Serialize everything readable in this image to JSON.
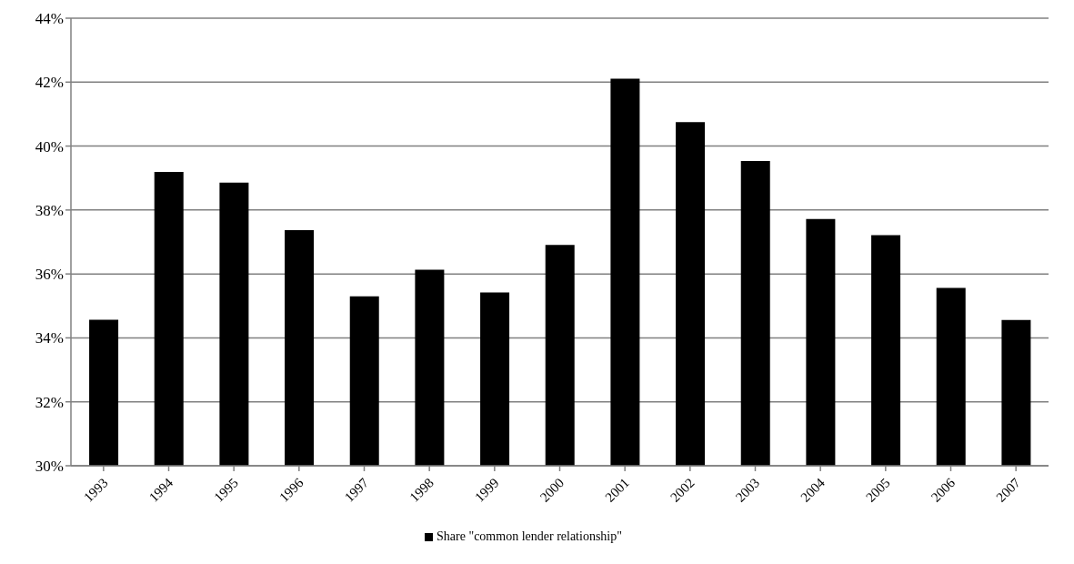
{
  "chart_data": {
    "type": "bar",
    "categories": [
      "1993",
      "1994",
      "1995",
      "1996",
      "1997",
      "1998",
      "1999",
      "2000",
      "2001",
      "2002",
      "2003",
      "2004",
      "2005",
      "2006",
      "2007"
    ],
    "series": [
      {
        "name": "Share \"common lender relationship\"",
        "color": "#000000",
        "values": [
          34.57,
          39.19,
          38.86,
          37.37,
          35.3,
          36.13,
          35.42,
          36.91,
          42.11,
          40.75,
          39.53,
          37.72,
          37.21,
          35.56,
          34.56
        ]
      }
    ],
    "ylim": [
      30,
      44
    ],
    "yticks": [
      {
        "value": 30,
        "label": "30%"
      },
      {
        "value": 32,
        "label": "32%"
      },
      {
        "value": 34,
        "label": "34%"
      },
      {
        "value": 36,
        "label": "36%"
      },
      {
        "value": 38,
        "label": "38%"
      },
      {
        "value": 40,
        "label": "40%"
      },
      {
        "value": 42,
        "label": "42%"
      },
      {
        "value": 44,
        "label": "44%"
      }
    ],
    "grid": "y",
    "legend": "bottom"
  }
}
